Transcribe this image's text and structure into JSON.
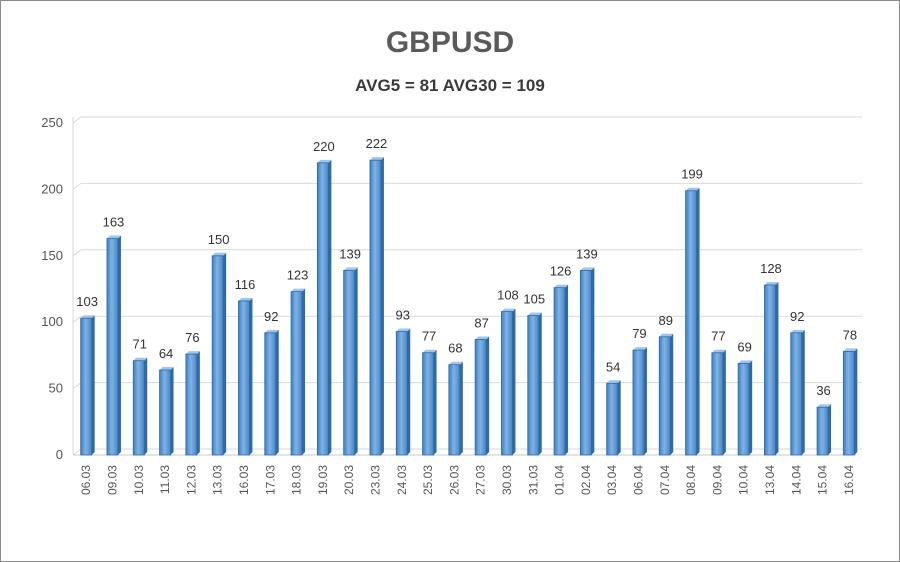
{
  "chart_data": {
    "type": "bar",
    "title": "GBPUSD",
    "subtitle": "AVG5 = 81 AVG30 = 109",
    "xlabel": "",
    "ylabel": "",
    "ylim": [
      0,
      250
    ],
    "yticks": [
      "0",
      "50",
      "100",
      "150",
      "200",
      "250"
    ],
    "grid": true,
    "categories": [
      "06.03",
      "09.03",
      "10.03",
      "11.03",
      "12.03",
      "13.03",
      "16.03",
      "17.03",
      "18.03",
      "19.03",
      "20.03",
      "23.03",
      "24.03",
      "25.03",
      "26.03",
      "27.03",
      "30.03",
      "31.03",
      "01.04",
      "02.04",
      "03.04",
      "06.04",
      "07.04",
      "08.04",
      "09.04",
      "10.04",
      "13.04",
      "14.04",
      "15.04",
      "16.04"
    ],
    "values": [
      103,
      163,
      71,
      64,
      76,
      150,
      116,
      92,
      123,
      220,
      139,
      222,
      93,
      77,
      68,
      87,
      108,
      105,
      126,
      139,
      54,
      79,
      89,
      199,
      77,
      69,
      128,
      92,
      36,
      78
    ],
    "bar_color": "#5b9bd5"
  }
}
